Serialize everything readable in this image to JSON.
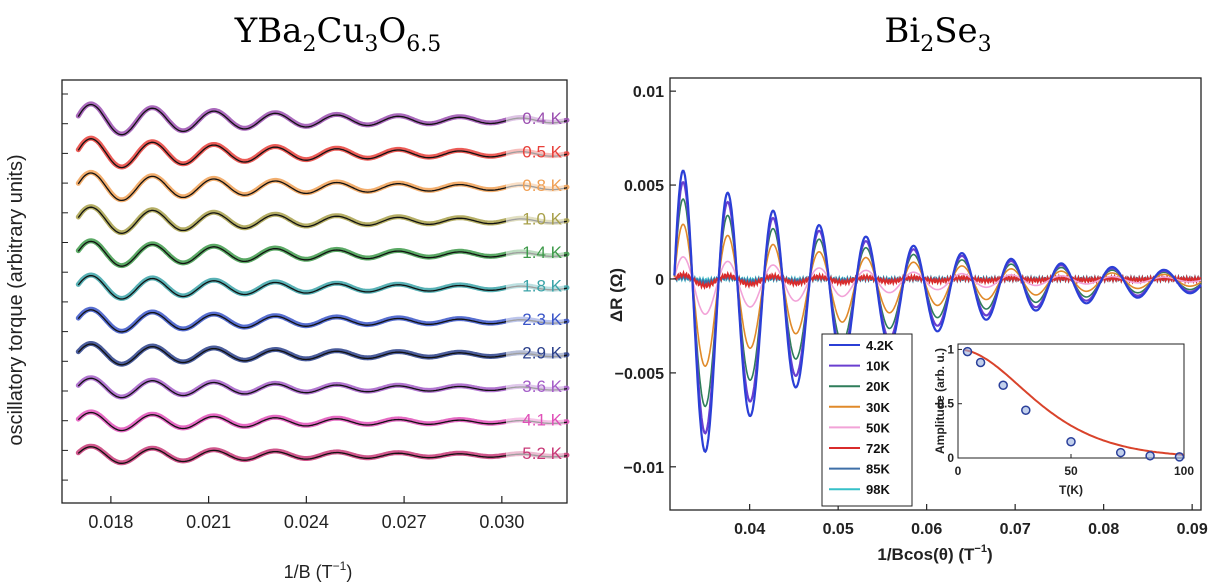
{
  "chart_data": [
    {
      "type": "line",
      "title": "YBa2Cu3O6.5",
      "title_parts": {
        "base": "YBa",
        "s1": "2",
        "m1": "Cu",
        "s2": "3",
        "m2": "O",
        "s3": "6.5"
      },
      "xlabel": "1/B (T",
      "xlabel_sup": "−1",
      "xlabel_end": ")",
      "ylabel": "oscillatory  torque (arbitrary units)",
      "xlim": [
        0.0165,
        0.032
      ],
      "xticks": [
        "0.018",
        "0.021",
        "0.024",
        "0.027",
        "0.030"
      ],
      "xtick_values": [
        0.018,
        0.021,
        0.024,
        0.027,
        0.03
      ],
      "ytick_labels_shown": false,
      "series": [
        {
          "name": "0.4 K",
          "color": "#9b4fb0"
        },
        {
          "name": "0.5 K",
          "color": "#e8403a"
        },
        {
          "name": "0.8 K",
          "color": "#f0a055"
        },
        {
          "name": "1.0 K",
          "color": "#a8a04a"
        },
        {
          "name": "1.4 K",
          "color": "#3e9a4a"
        },
        {
          "name": "1.8 K",
          "color": "#3ba3a8"
        },
        {
          "name": "2.3 K",
          "color": "#3a55c8"
        },
        {
          "name": "2.9 K",
          "color": "#2a3f8a"
        },
        {
          "name": "3.6 K",
          "color": "#a45ec8"
        },
        {
          "name": "4.1 K",
          "color": "#e050b8"
        },
        {
          "name": "5.2 K",
          "color": "#c83a78"
        }
      ],
      "oscillation_model": {
        "frequency_inverse_T": 530,
        "envelope_decay": 140,
        "base_amplitude": 1.0
      }
    },
    {
      "type": "line",
      "title": "Bi2Se3",
      "title_parts": {
        "base": "Bi",
        "s1": "2",
        "m1": "Se",
        "s2": "3"
      },
      "xlabel": "1/Bcos(θ) (T",
      "xlabel_sup": "−1",
      "xlabel_end": ")",
      "ylabel": "ΔR (Ω)",
      "xlim": [
        0.031,
        0.091
      ],
      "ylim": [
        -0.0123,
        0.0107
      ],
      "xticks": [
        "0.04",
        "0.05",
        "0.06",
        "0.07",
        "0.08",
        "0.09"
      ],
      "xtick_values": [
        0.04,
        0.05,
        0.06,
        0.07,
        0.08,
        0.09
      ],
      "yticks": [
        "0.01",
        "0.005",
        "0",
        "−0.005",
        "−0.01"
      ],
      "ytick_values": [
        0.01,
        0.005,
        0,
        -0.005,
        -0.01
      ],
      "series": [
        {
          "name": "4.2K",
          "color": "#2b3fd6",
          "amplitude": 0.0103
        },
        {
          "name": "10K",
          "color": "#6a3fd0",
          "amplitude": 0.0092
        },
        {
          "name": "20K",
          "color": "#2f7d5a",
          "amplitude": 0.0076
        },
        {
          "name": "30K",
          "color": "#e08a2a",
          "amplitude": 0.0052
        },
        {
          "name": "50K",
          "color": "#f2a3d8",
          "amplitude": 0.0021
        },
        {
          "name": "72K",
          "color": "#d92b2b",
          "amplitude": 0.0004
        },
        {
          "name": "85K",
          "color": "#3f6fa8",
          "amplitude": 0.0002
        },
        {
          "name": "98K",
          "color": "#36c0c8",
          "amplitude": 0.0001
        }
      ],
      "oscillation_model": {
        "first_peak_x": 0.0325,
        "period": 0.005,
        "envelope_decay": 0.022
      },
      "inset": {
        "type": "line",
        "xlabel": "T(K)",
        "ylabel": "Amplitude (arb. u.)",
        "xlim": [
          0,
          100
        ],
        "ylim": [
          0,
          1.05
        ],
        "xticks": [
          "0",
          "50",
          "100"
        ],
        "xtick_values": [
          0,
          50,
          100
        ],
        "yticks": [
          "0",
          "0.5",
          "1"
        ],
        "ytick_values": [
          0,
          0.5,
          1
        ],
        "points": [
          {
            "x": 4.2,
            "y": 0.98
          },
          {
            "x": 10,
            "y": 0.88
          },
          {
            "x": 20,
            "y": 0.67
          },
          {
            "x": 30,
            "y": 0.44
          },
          {
            "x": 50,
            "y": 0.15
          },
          {
            "x": 72,
            "y": 0.05
          },
          {
            "x": 85,
            "y": 0.02
          },
          {
            "x": 98,
            "y": 0.01
          }
        ],
        "fit_color": "#d9432b",
        "point_color": "#2a3f9a"
      }
    }
  ]
}
